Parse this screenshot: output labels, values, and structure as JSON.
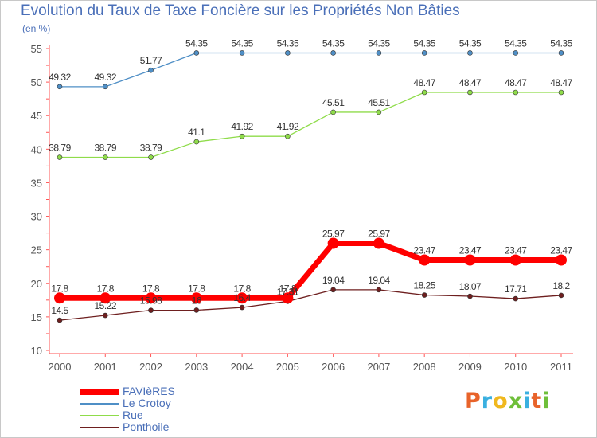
{
  "chart_data": {
    "type": "line",
    "title": "Evolution du Taux de Taxe Foncière sur les Propriétés Non Bâties",
    "unit_label": "(en %)",
    "xlabel": "",
    "ylabel": "",
    "x": [
      "2000",
      "2001",
      "2002",
      "2003",
      "2004",
      "2005",
      "2006",
      "2007",
      "2008",
      "2009",
      "2010",
      "2011"
    ],
    "ylim": [
      10,
      55
    ],
    "yticks": [
      10,
      15,
      20,
      25,
      30,
      35,
      40,
      45,
      50,
      55
    ],
    "grid": false,
    "legend_position": "bottom-left",
    "series": [
      {
        "name": "FAVIèRES",
        "color": "#ff0000",
        "values": [
          17.8,
          17.8,
          17.8,
          17.8,
          17.8,
          17.8,
          25.97,
          25.97,
          23.47,
          23.47,
          23.47,
          23.47
        ],
        "labels": [
          "17.8",
          "17.8",
          "17.8",
          "17.8",
          "17.8",
          "17.8",
          "25.97",
          "25.97",
          "23.47",
          "23.47",
          "23.47",
          "23.47"
        ]
      },
      {
        "name": "Le Crotoy",
        "color": "#4f8fc6",
        "values": [
          49.32,
          49.32,
          51.77,
          54.35,
          54.35,
          54.35,
          54.35,
          54.35,
          54.35,
          54.35,
          54.35,
          54.35
        ],
        "labels": [
          "49.32",
          "49.32",
          "51.77",
          "54.35",
          "54.35",
          "54.35",
          "54.35",
          "54.35",
          "54.35",
          "54.35",
          "54.35",
          "54.35"
        ]
      },
      {
        "name": "Rue",
        "color": "#8fdc4a",
        "values": [
          38.79,
          38.79,
          38.79,
          41.1,
          41.92,
          41.92,
          45.51,
          45.51,
          48.47,
          48.47,
          48.47,
          48.47
        ],
        "labels": [
          "38.79",
          "38.79",
          "38.79",
          "41.1",
          "41.92",
          "41.92",
          "45.51",
          "45.51",
          "48.47",
          "48.47",
          "48.47",
          "48.47"
        ]
      },
      {
        "name": "Ponthoile",
        "color": "#6e1f1f",
        "values": [
          14.5,
          15.22,
          15.98,
          16,
          16.4,
          17.31,
          19.04,
          19.04,
          18.25,
          18.07,
          17.71,
          18.2
        ],
        "labels": [
          "14.5",
          "15.22",
          "15.98",
          "16",
          "16.4",
          "17.31",
          "19.04",
          "19.04",
          "18.25",
          "18.07",
          "17.71",
          "18.2"
        ]
      }
    ]
  },
  "logo": {
    "letters": [
      "P",
      "r",
      "o",
      "x",
      "i",
      "t",
      "i"
    ],
    "colors": [
      "#e8632a",
      "#3ab0e0",
      "#f0b81e",
      "#6fbf3a",
      "#3ab0e0",
      "#e8632a",
      "#6fbf3a"
    ]
  }
}
